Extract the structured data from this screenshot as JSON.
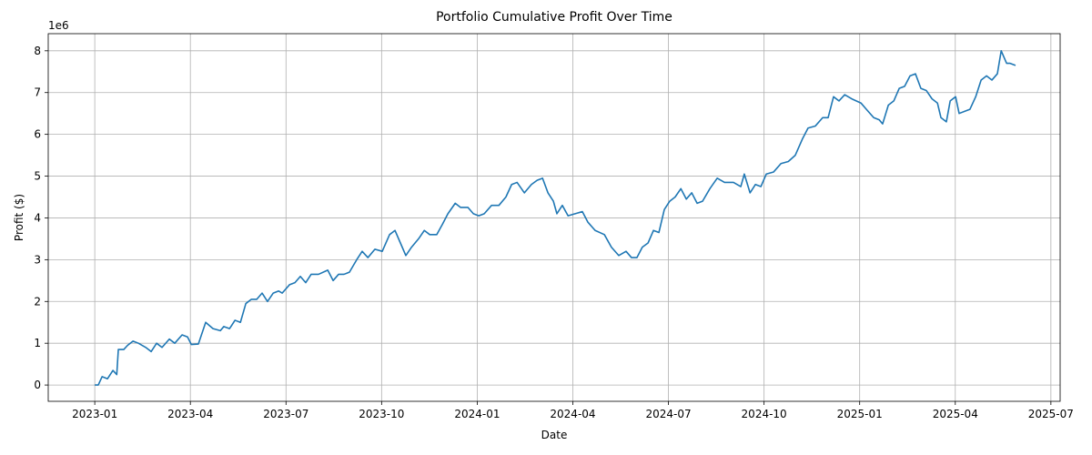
{
  "chart_data": {
    "type": "line",
    "title": "Portfolio Cumulative Profit Over Time",
    "xlabel": "Date",
    "ylabel": "Profit ($)",
    "y_offset_label": "1e6",
    "color": "#1f77b4",
    "grid": true,
    "xlim": [
      -1.46,
      30.29
    ],
    "ylim": [
      -0.39,
      8.41
    ],
    "xticks": [
      {
        "value": 0,
        "label": "2023-01"
      },
      {
        "value": 3,
        "label": "2023-04"
      },
      {
        "value": 6,
        "label": "2023-07"
      },
      {
        "value": 9,
        "label": "2023-10"
      },
      {
        "value": 12,
        "label": "2024-01"
      },
      {
        "value": 15,
        "label": "2024-04"
      },
      {
        "value": 18,
        "label": "2024-07"
      },
      {
        "value": 21,
        "label": "2024-10"
      },
      {
        "value": 24,
        "label": "2025-01"
      },
      {
        "value": 27,
        "label": "2025-04"
      },
      {
        "value": 30,
        "label": "2025-07"
      }
    ],
    "yticks": [
      0,
      1,
      2,
      3,
      4,
      5,
      6,
      7,
      8
    ],
    "x": [
      0,
      0.11,
      0.23,
      0.4,
      0.57,
      0.69,
      0.74,
      0.91,
      1.03,
      1.2,
      1.37,
      1.6,
      1.77,
      1.94,
      2.11,
      2.34,
      2.51,
      2.74,
      2.91,
      3.03,
      3.25,
      3.48,
      3.71,
      3.94,
      4.05,
      4.23,
      4.4,
      4.57,
      4.74,
      4.91,
      5.08,
      5.25,
      5.42,
      5.6,
      5.77,
      5.88,
      6.11,
      6.28,
      6.45,
      6.62,
      6.79,
      7.02,
      7.31,
      7.48,
      7.65,
      7.82,
      7.99,
      8.22,
      8.39,
      8.57,
      8.79,
      9.02,
      9.25,
      9.42,
      9.59,
      9.76,
      9.94,
      10.16,
      10.34,
      10.51,
      10.73,
      10.91,
      11.08,
      11.31,
      11.48,
      11.71,
      11.88,
      12.05,
      12.22,
      12.45,
      12.68,
      12.9,
      13.08,
      13.25,
      13.48,
      13.7,
      13.88,
      14.05,
      14.22,
      14.39,
      14.5,
      14.67,
      14.85,
      15.07,
      15.3,
      15.47,
      15.7,
      15.99,
      16.21,
      16.44,
      16.67,
      16.84,
      17.01,
      17.18,
      17.36,
      17.53,
      17.7,
      17.87,
      18.04,
      18.21,
      18.39,
      18.56,
      18.73,
      18.9,
      19.07,
      19.3,
      19.53,
      19.76,
      20.04,
      20.27,
      20.38,
      20.56,
      20.73,
      20.9,
      21.07,
      21.3,
      21.53,
      21.76,
      21.98,
      22.21,
      22.38,
      22.61,
      22.84,
      23.01,
      23.18,
      23.35,
      23.53,
      23.75,
      24.04,
      24.21,
      24.44,
      24.61,
      24.72,
      24.9,
      25.07,
      25.24,
      25.41,
      25.58,
      25.75,
      25.92,
      26.09,
      26.27,
      26.44,
      26.55,
      26.72,
      26.84,
      27.01,
      27.12,
      27.29,
      27.46,
      27.64,
      27.81,
      27.98,
      28.15,
      28.32,
      28.44,
      28.61,
      28.72,
      28.89
    ],
    "values": [
      0,
      0,
      0.2,
      0.15,
      0.35,
      0.25,
      0.85,
      0.85,
      0.95,
      1.05,
      1.0,
      0.9,
      0.8,
      1.0,
      0.9,
      1.1,
      1.0,
      1.2,
      1.15,
      0.97,
      0.98,
      1.5,
      1.35,
      1.3,
      1.4,
      1.35,
      1.55,
      1.5,
      1.95,
      2.05,
      2.05,
      2.2,
      2.0,
      2.2,
      2.25,
      2.2,
      2.4,
      2.45,
      2.6,
      2.45,
      2.65,
      2.65,
      2.75,
      2.5,
      2.65,
      2.65,
      2.7,
      3.0,
      3.2,
      3.05,
      3.25,
      3.2,
      3.6,
      3.7,
      3.4,
      3.1,
      3.3,
      3.5,
      3.7,
      3.6,
      3.6,
      3.85,
      4.1,
      4.35,
      4.25,
      4.25,
      4.1,
      4.05,
      4.1,
      4.3,
      4.3,
      4.5,
      4.8,
      4.85,
      4.6,
      4.8,
      4.9,
      4.95,
      4.6,
      4.4,
      4.1,
      4.3,
      4.05,
      4.1,
      4.15,
      3.9,
      3.7,
      3.6,
      3.3,
      3.1,
      3.2,
      3.05,
      3.05,
      3.3,
      3.4,
      3.7,
      3.65,
      4.2,
      4.4,
      4.5,
      4.7,
      4.45,
      4.6,
      4.35,
      4.4,
      4.7,
      4.95,
      4.85,
      4.85,
      4.75,
      5.05,
      4.6,
      4.8,
      4.75,
      5.05,
      5.1,
      5.3,
      5.35,
      5.5,
      5.9,
      6.15,
      6.2,
      6.4,
      6.4,
      6.9,
      6.8,
      6.95,
      6.85,
      6.75,
      6.6,
      6.4,
      6.35,
      6.25,
      6.7,
      6.8,
      7.1,
      7.15,
      7.4,
      7.45,
      7.1,
      7.05,
      6.85,
      6.75,
      6.4,
      6.3,
      6.8,
      6.9,
      6.5,
      6.55,
      6.6,
      6.9,
      7.3,
      7.4,
      7.3,
      7.45,
      8.0,
      7.7,
      7.7,
      7.65
    ]
  }
}
